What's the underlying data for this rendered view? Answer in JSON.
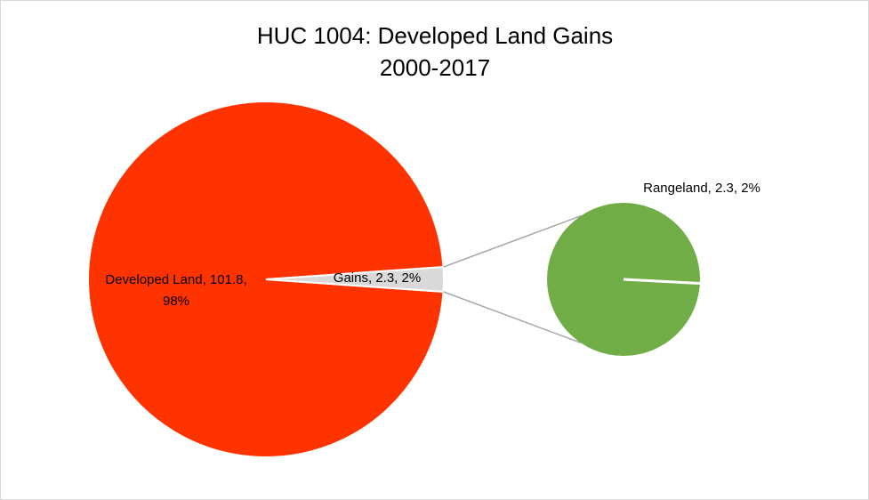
{
  "chart_data": {
    "type": "pie",
    "title": "HUC 1004: Developed Land Gains",
    "subtitle": "2000-2017",
    "main_pie": {
      "slices": [
        {
          "name": "Developed Land",
          "value": 101.8,
          "percent": "98%",
          "color": "#FF3300",
          "label_line1": "Developed Land, 101.8,",
          "label_line2": "98%"
        },
        {
          "name": "Gains",
          "value": 2.3,
          "percent": "2%",
          "color": "#D9D9D9",
          "label_line1": "Gains, 2.3, 2%"
        }
      ]
    },
    "secondary_pie": {
      "slices": [
        {
          "name": "Rangeland",
          "value": 2.3,
          "percent": "2%",
          "color": "#70AD47",
          "label_line1": "Rangeland, 2.3, 2%"
        }
      ]
    },
    "connector_color": "#A6A6A6"
  }
}
